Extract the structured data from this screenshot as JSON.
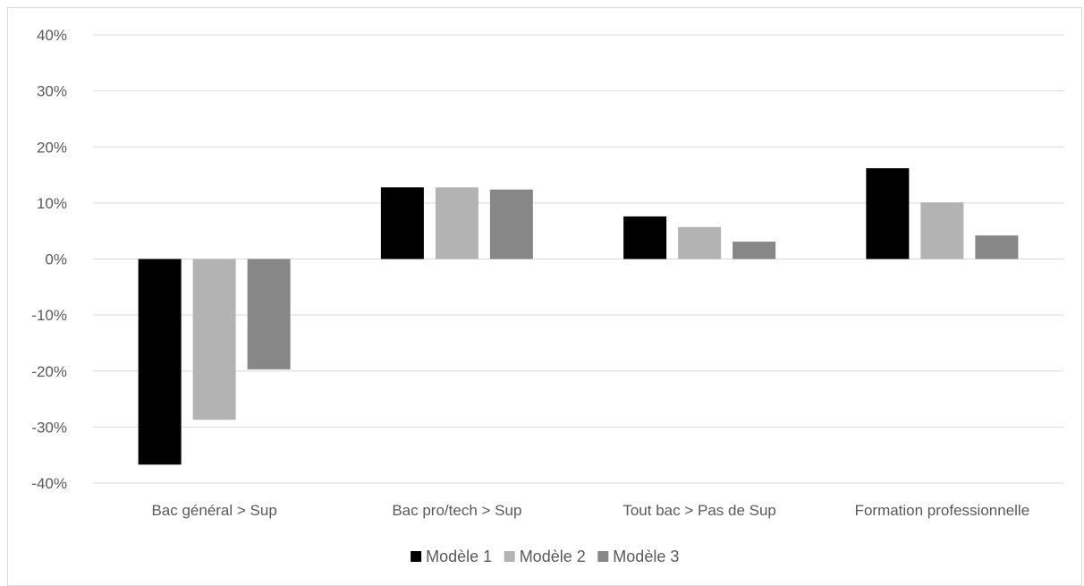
{
  "chart_data": {
    "type": "bar",
    "title": "",
    "xlabel": "",
    "ylabel": "",
    "ylim": [
      -40,
      40
    ],
    "y_ticks": [
      "40%",
      "30%",
      "20%",
      "10%",
      "0%",
      "-10%",
      "-20%",
      "-30%",
      "-40%"
    ],
    "y_tick_values": [
      40,
      30,
      20,
      10,
      0,
      -10,
      -20,
      -30,
      -40
    ],
    "categories": [
      "Bac général > Sup",
      "Bac pro/tech > Sup",
      "Tout bac > Pas de Sup",
      "Formation professionnelle"
    ],
    "series": [
      {
        "name": "Modèle 1",
        "color": "#000000",
        "values": [
          -36.7,
          12.8,
          7.6,
          16.2
        ]
      },
      {
        "name": "Modèle 2",
        "color": "#b3b3b3",
        "values": [
          -28.7,
          12.8,
          5.7,
          10.1
        ]
      },
      {
        "name": "Modèle 3",
        "color": "#878787",
        "values": [
          -19.7,
          12.4,
          3.1,
          4.2
        ]
      }
    ],
    "grid": true,
    "legend": "bottom"
  }
}
